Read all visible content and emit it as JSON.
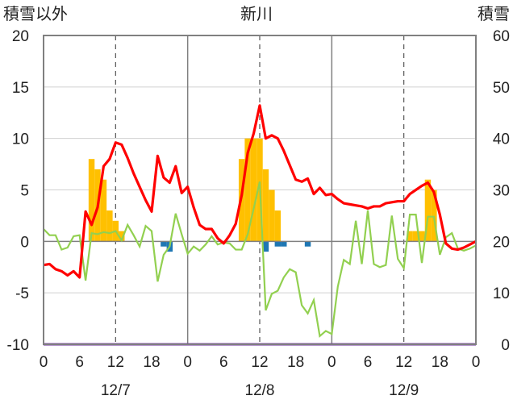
{
  "chart_data": {
    "type": "bar",
    "title": "新川",
    "left_axis_label": "積雪以外",
    "right_axis_label": "積雪",
    "y_left": {
      "min": -10,
      "max": 20,
      "ticks": [
        "20",
        "15",
        "10",
        "5",
        "0",
        "-5",
        "-10"
      ]
    },
    "y_right": {
      "min": 0,
      "max": 60,
      "ticks": [
        "60",
        "50",
        "40",
        "30",
        "20",
        "10",
        "0"
      ]
    },
    "x_hour_ticks": [
      "0",
      "6",
      "12",
      "18",
      "0",
      "6",
      "12",
      "18",
      "0",
      "6",
      "12",
      "18",
      "0"
    ],
    "x_dates": [
      "12/7",
      "12/8",
      "12/9"
    ],
    "grid": "dashed vertical lines at 12h, solid at midnight",
    "colors": {
      "snowfall": "#FFC000",
      "precip": "#1F77B4",
      "temperature": "#FF0000",
      "wind": "#92D050",
      "snow_depth": "#7030A0",
      "zero_line": "#808080"
    },
    "snowfall_bars": [
      {
        "hour": 8,
        "value": 8
      },
      {
        "hour": 9,
        "value": 7
      },
      {
        "hour": 10,
        "value": 6
      },
      {
        "hour": 11,
        "value": 3
      },
      {
        "hour": 12,
        "value": 2
      },
      {
        "hour": 13,
        "value": 1
      },
      {
        "hour": 33,
        "value": 8
      },
      {
        "hour": 34,
        "value": 10
      },
      {
        "hour": 35,
        "value": 10
      },
      {
        "hour": 36,
        "value": 10
      },
      {
        "hour": 37,
        "value": 7
      },
      {
        "hour": 38,
        "value": 5
      },
      {
        "hour": 39,
        "value": 3
      },
      {
        "hour": 61,
        "value": 1
      },
      {
        "hour": 62,
        "value": 1
      },
      {
        "hour": 63,
        "value": 1
      },
      {
        "hour": 64,
        "value": 6
      },
      {
        "hour": 65,
        "value": 5
      }
    ],
    "precip_bars": [
      {
        "hour": 20,
        "value": -0.5
      },
      {
        "hour": 21,
        "value": -1
      },
      {
        "hour": 37,
        "value": -1
      },
      {
        "hour": 39,
        "value": -0.5
      },
      {
        "hour": 40,
        "value": -0.5
      },
      {
        "hour": 44,
        "value": -0.5
      }
    ],
    "temperature": [
      -2.3,
      -2.2,
      -2.7,
      -2.9,
      -3.3,
      -2.9,
      -3.5,
      2.9,
      1.6,
      3.3,
      7.3,
      8.0,
      9.6,
      9.4,
      8.1,
      6.6,
      5.3,
      4.0,
      2.9,
      8.3,
      6.2,
      5.7,
      7.3,
      4.7,
      5.3,
      3.3,
      1.6,
      1.2,
      1.2,
      0.3,
      -0.2,
      0.6,
      1.7,
      4.5,
      8.6,
      10.5,
      13.2,
      10.0,
      10.3,
      10.0,
      8.8,
      7.4,
      6.0,
      5.8,
      6.1,
      4.6,
      5.2,
      4.5,
      4.6,
      4.1,
      3.7,
      3.6,
      3.5,
      3.4,
      3.2,
      3.4,
      3.4,
      3.7,
      3.8,
      3.9,
      3.9,
      4.6,
      5.0,
      5.4,
      5.7,
      4.8,
      2.6,
      -0.2,
      -0.7,
      -0.8,
      -0.6,
      -0.3,
      0.0
    ],
    "wind": [
      1.2,
      0.6,
      0.6,
      -0.8,
      -0.6,
      0.5,
      0.6,
      -3.8,
      0.8,
      0.7,
      0.9,
      0.8,
      1.0,
      0.1,
      1.6,
      0.6,
      -0.5,
      1.5,
      1.0,
      -3.9,
      -1.3,
      -0.5,
      2.7,
      0.7,
      -1.2,
      -0.5,
      -0.9,
      -0.3,
      0.5,
      -0.3,
      -0.1,
      -0.2,
      -0.8,
      -0.8,
      0.7,
      3.2,
      5.8,
      -6.7,
      -5.1,
      -4.8,
      -3.5,
      -2.7,
      -3.0,
      -6.2,
      -7.0,
      -5.7,
      -9.2,
      -8.7,
      -9.0,
      -4.4,
      -1.8,
      -2.2,
      2.0,
      -2.2,
      3.0,
      -2.2,
      -2.5,
      -2.3,
      2.5,
      -1.7,
      -2.6,
      2.6,
      2.6,
      -2.1,
      2.4,
      2.4,
      -1.3,
      0.4,
      0.8,
      -0.7,
      -0.9,
      -0.7,
      -0.4
    ],
    "snow_depth": [
      0,
      0,
      0,
      0,
      0,
      0,
      0,
      0,
      0,
      0,
      0,
      0,
      0,
      0,
      0,
      0,
      0,
      0,
      0,
      0,
      0,
      0,
      0,
      0,
      0,
      0,
      0,
      0,
      0,
      0,
      0,
      0,
      0,
      0,
      0,
      0,
      0,
      0,
      0,
      0,
      0,
      0,
      0,
      0,
      0,
      0,
      0,
      0,
      0,
      0,
      0,
      0,
      0,
      0,
      0,
      0,
      0,
      0,
      0,
      0,
      0,
      0,
      0,
      0,
      0,
      0,
      0,
      0,
      0,
      0,
      0,
      0,
      0
    ]
  }
}
